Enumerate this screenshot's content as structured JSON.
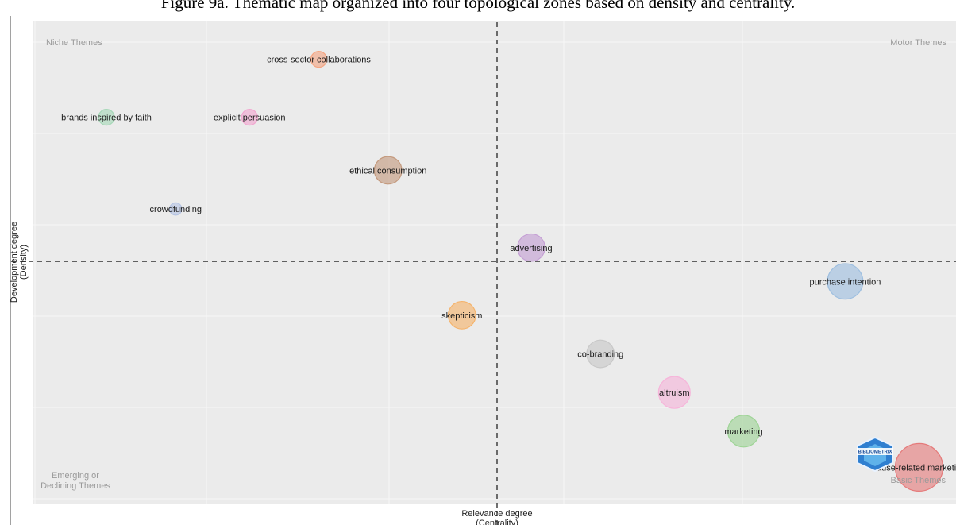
{
  "caption": "Figure 9a. Thematic map organized into four topological zones based on density and centrality.",
  "chart_data": {
    "type": "scatter",
    "title": "",
    "xlabel_line1": "Relevance degree",
    "xlabel_line2": "(Centrality)",
    "ylabel_line1": "Development degree",
    "ylabel_line2": "(Density)",
    "grid": true,
    "plot_background": "#ebebeb",
    "quadrant_labels": {
      "top_left": "Niche Themes",
      "top_right": "Motor Themes",
      "bottom_left_line1": "Emerging or",
      "bottom_left_line2": "Declining Themes",
      "bottom_right": "Basic Themes"
    },
    "logo_text": "BIBLIOMETRIX",
    "points": [
      {
        "label": "cross-sector collaborations",
        "x": 0.31,
        "y": 0.92,
        "size": 1,
        "color": "#f4a582"
      },
      {
        "label": "brands inspired by faith",
        "x": 0.08,
        "y": 0.8,
        "size": 1,
        "color": "#a6d8b8"
      },
      {
        "label": "explicit persuasion",
        "x": 0.235,
        "y": 0.8,
        "size": 1,
        "color": "#f2a7d0"
      },
      {
        "label": "ethical consumption",
        "x": 0.385,
        "y": 0.69,
        "size": 3,
        "color": "#c49a7e"
      },
      {
        "label": "crowdfunding",
        "x": 0.155,
        "y": 0.61,
        "size": 0.6,
        "color": "#b5c4e4"
      },
      {
        "label": "advertising",
        "x": 0.54,
        "y": 0.53,
        "size": 3,
        "color": "#c49ed4"
      },
      {
        "label": "purchase intention",
        "x": 0.88,
        "y": 0.46,
        "size": 5,
        "color": "#9ebfe0"
      },
      {
        "label": "skepticism",
        "x": 0.465,
        "y": 0.39,
        "size": 3,
        "color": "#f5b36b"
      },
      {
        "label": "co-branding",
        "x": 0.615,
        "y": 0.31,
        "size": 3,
        "color": "#c8c8c8"
      },
      {
        "label": "altruism",
        "x": 0.695,
        "y": 0.23,
        "size": 4,
        "color": "#f6b5da"
      },
      {
        "label": "marketing",
        "x": 0.77,
        "y": 0.15,
        "size": 4,
        "color": "#9ed496"
      },
      {
        "label": "cause-related marketing",
        "x": 0.96,
        "y": 0.075,
        "size": 9,
        "color": "#e57a7a"
      }
    ]
  }
}
